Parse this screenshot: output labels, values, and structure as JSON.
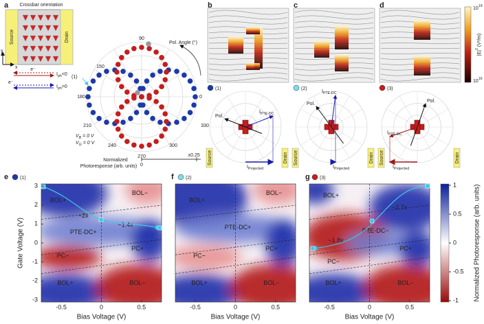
{
  "panel_a": {
    "letter": "a",
    "title": "Crossbar orientation",
    "source": "Source",
    "drain": "Drain",
    "axis_y": "y",
    "axis_x": "x",
    "arrow_neg": {
      "carrier": "e⁻",
      "current": "I",
      "sub": "ph",
      "cond": "<0"
    },
    "arrow_pos": {
      "carrier": "e⁻",
      "current": "I",
      "sub": "ph",
      "cond": ">0"
    },
    "tag": "(1)",
    "angles": [
      "90",
      "150",
      "180",
      "210",
      "240",
      "270",
      "300",
      "330",
      "0"
    ],
    "angle_title": "Pol. Angle (°)",
    "vb": {
      "sym": "V",
      "sub": "B",
      "rest": " = 0 V"
    },
    "vg": {
      "sym": "V",
      "sub": "G",
      "rest": " = 0 V"
    },
    "radial_title": [
      "Normalized",
      "Photoresponse (arb. units)"
    ],
    "radial_ticks": [
      "0",
      "±0.25"
    ]
  },
  "field_panels": [
    {
      "letter": "b",
      "tag": "(1)",
      "pol": "Pol.",
      "current": {
        "sym": "I",
        "sub": "PTE-DC"
      },
      "projected": {
        "sym": "I",
        "sub": "Projected"
      },
      "source": "Source",
      "drain": "Drain"
    },
    {
      "letter": "c",
      "tag": "(2)",
      "pol": "Pol.",
      "current": {
        "sym": "I",
        "sub": "PTE-DC"
      },
      "projected": {
        "sym": "I",
        "sub": "Projected"
      },
      "source": "Source",
      "drain": "Drain"
    },
    {
      "letter": "d",
      "tag": "(3)",
      "pol": "Pol.",
      "current": {
        "sym": "I",
        "sub": "PTE-DC"
      },
      "projected": {
        "sym": "I",
        "sub": "Projected"
      },
      "source": "Source",
      "drain": "Drain"
    }
  ],
  "field_colorbar": {
    "top": {
      "base": "10",
      "exp": "19"
    },
    "bottom": {
      "base": "10",
      "exp": "16"
    },
    "title": {
      "pre": "|E|",
      "exp": "2",
      "post": " (V²/m)"
    }
  },
  "maps": [
    {
      "letter": "e",
      "tag": "(1)",
      "regions": [
        "BOL+",
        "BOL−",
        "~2x",
        "PTE-DC+",
        "~1.4x",
        "PC+",
        "PC−",
        "BOL+",
        "BOL−"
      ],
      "xticks": [
        "-0.5",
        "0",
        "0.5"
      ],
      "xlabel": "Bias Voltage (V)"
    },
    {
      "letter": "f",
      "tag": "(2)",
      "regions": [
        "BOL+",
        "BOL−",
        "PTE-DC+",
        "PC+",
        "PC−",
        "BOL+",
        "BOL−"
      ],
      "xticks": [
        "-0.5",
        "0",
        "0.5"
      ],
      "xlabel": "Bias Voltage (V)"
    },
    {
      "letter": "g",
      "tag": "(3)",
      "regions": [
        "BOL+",
        "~2.7x",
        "PTE-DC−",
        "~1.8x",
        "PC+",
        "PC−",
        "BOL+",
        "BOL−"
      ],
      "xticks": [
        "-0.5",
        "0",
        "0.5"
      ],
      "xlabel": "Bias Voltage (V)"
    }
  ],
  "yaxis": {
    "label": "Gate Voltage (V)",
    "ticks": [
      "3",
      "2",
      "1",
      "0",
      "-1",
      "-2",
      "-3"
    ]
  },
  "map_colorbar": {
    "ticks": [
      "1",
      "0.5",
      "0",
      "-0.5",
      "-1"
    ],
    "title": "Normalized Photoresponse (arb. units)"
  }
}
